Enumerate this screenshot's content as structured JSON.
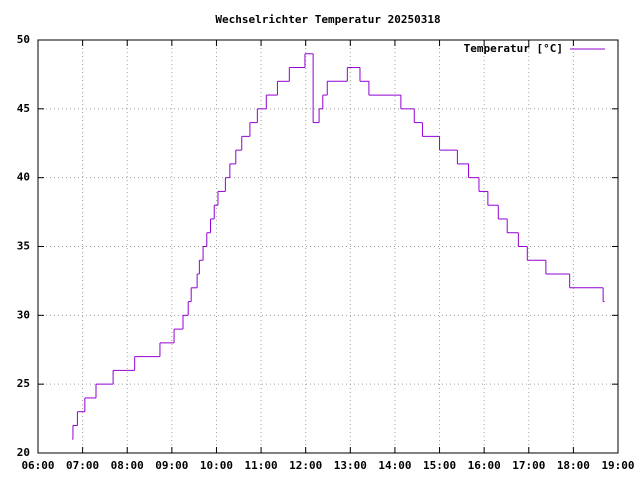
{
  "chart_data": {
    "type": "line",
    "style": "steps",
    "title": "Wechselrichter Temperatur 20250318",
    "x": [
      "06:46",
      "06:47",
      "06:53",
      "07:03",
      "07:18",
      "07:41",
      "08:10",
      "08:44",
      "09:03",
      "09:15",
      "09:22",
      "09:26",
      "09:34",
      "09:37",
      "09:42",
      "09:47",
      "09:52",
      "09:57",
      "10:02",
      "10:12",
      "10:18",
      "10:26",
      "10:34",
      "10:45",
      "10:55",
      "11:07",
      "11:22",
      "11:38",
      "11:59",
      "12:10",
      "12:18",
      "12:23",
      "12:29",
      "12:56",
      "13:13",
      "13:25",
      "14:08",
      "14:26",
      "14:37",
      "15:00",
      "15:24",
      "15:39",
      "15:53",
      "16:05",
      "16:19",
      "16:31",
      "16:46",
      "16:58",
      "17:23",
      "17:55",
      "18:40",
      "18:42"
    ],
    "series": [
      {
        "name": "Temperatur [°C]",
        "color": "#9400d3",
        "values": [
          21,
          22,
          23,
          24,
          25,
          26,
          27,
          28,
          29,
          30,
          31,
          32,
          33,
          34,
          35,
          36,
          37,
          38,
          39,
          40,
          41,
          42,
          43,
          44,
          45,
          46,
          47,
          48,
          49,
          44,
          45,
          46,
          47,
          48,
          47,
          46,
          45,
          44,
          43,
          42,
          41,
          40,
          39,
          38,
          37,
          36,
          35,
          34,
          33,
          32,
          31,
          31
        ]
      }
    ],
    "xlim": [
      "06:00",
      "19:00"
    ],
    "xticks": [
      "06:00",
      "07:00",
      "08:00",
      "09:00",
      "10:00",
      "11:00",
      "12:00",
      "13:00",
      "14:00",
      "15:00",
      "16:00",
      "17:00",
      "18:00",
      "19:00"
    ],
    "ylim": [
      20,
      50
    ],
    "yticks": [
      20,
      25,
      30,
      35,
      40,
      45,
      50
    ],
    "grid": true,
    "legend": "top-right"
  }
}
